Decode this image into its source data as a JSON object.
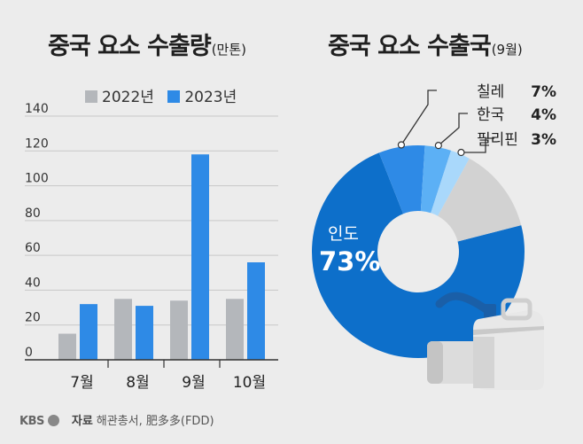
{
  "left_title": "중국 요소 수출량",
  "left_title_unit": "(만톤)",
  "right_title": "중국 요소 수출국",
  "right_title_unit": "(9월)",
  "footer": {
    "logo": "KBS",
    "source_label": "자료",
    "source_text": "해관총서, 肥多多(FDD)"
  },
  "colors": {
    "series_2022": "#b4b7bb",
    "series_2023": "#2e8ae6",
    "india": "#0d6fca",
    "chile": "#2e8ae6",
    "korea": "#5cb0f5",
    "philippines": "#a9d8fb",
    "others": "#d2d2d2"
  },
  "chart_data": [
    {
      "type": "bar",
      "title": "중국 요소 수출량",
      "unit": "(만톤)",
      "categories": [
        "7월",
        "8월",
        "9월",
        "10월"
      ],
      "series": [
        {
          "name": "2022년",
          "values": [
            15,
            35,
            34,
            35
          ]
        },
        {
          "name": "2023년",
          "values": [
            32,
            31,
            118,
            56
          ]
        }
      ],
      "ylim": [
        0,
        140
      ],
      "yticks": [
        "0",
        "20",
        "40",
        "60",
        "80",
        "100",
        "120",
        "140"
      ],
      "grid": true,
      "legend": "top"
    },
    {
      "type": "pie",
      "title": "중국 요소 수출국",
      "unit": "(9월)",
      "slices": [
        {
          "label": "인도",
          "value": 73,
          "value_label": "73%"
        },
        {
          "label": "칠레",
          "value": 7,
          "value_label": "7%"
        },
        {
          "label": "한국",
          "value": 4,
          "value_label": "4%"
        },
        {
          "label": "필리핀",
          "value": 3,
          "value_label": "3%"
        },
        {
          "label": "",
          "value": 13,
          "value_label": ""
        }
      ]
    }
  ]
}
